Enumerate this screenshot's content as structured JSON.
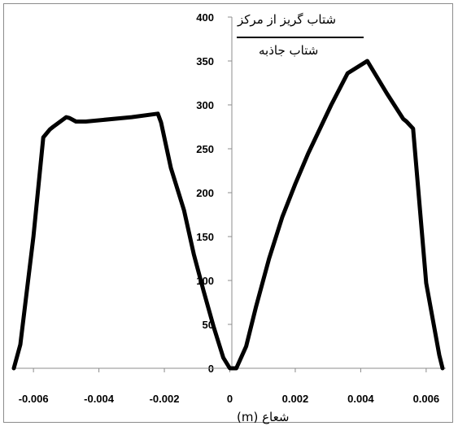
{
  "chart_data": {
    "type": "line",
    "ylabel": {
      "numerator": "شتاب گریز از مرکز",
      "denominator": "شتاب جاذبه"
    },
    "xlabel": "شعاع (m)",
    "xlim": [
      -0.0066,
      0.0066
    ],
    "ylim": [
      0,
      400
    ],
    "x_ticks": [
      "-0.006",
      "-0.004",
      "-0.002",
      "0",
      "0.002",
      "0.004",
      "0.006"
    ],
    "x_tick_values": [
      -0.006,
      -0.004,
      -0.002,
      0,
      0.002,
      0.004,
      0.006
    ],
    "y_ticks": [
      "0",
      "50",
      "100",
      "150",
      "200",
      "250",
      "300",
      "350",
      "400"
    ],
    "y_tick_values": [
      0,
      50,
      100,
      150,
      200,
      250,
      300,
      350,
      400
    ],
    "grid": false,
    "legend": "none",
    "line_color": "#000000",
    "series": [
      {
        "x": [
          -0.0066,
          -0.0064,
          -0.006,
          -0.0057,
          -0.0055,
          -0.0054,
          -0.005,
          -0.0049,
          -0.0047,
          -0.0044,
          -0.003,
          -0.0022,
          -0.0021,
          -0.0018,
          -0.0014,
          -0.0011,
          -0.0008,
          -0.0005,
          -0.0002,
          0,
          0.0002,
          0.0005,
          0.0008,
          0.0012,
          0.0016,
          0.002,
          0.0024,
          0.0031,
          0.0036,
          0.0042,
          0.0048,
          0.0053,
          0.0054,
          0.0056,
          0.006,
          0.0064,
          0.0065
        ],
        "y": [
          0,
          27,
          150,
          263,
          272,
          275,
          286,
          285,
          281,
          281,
          286,
          290,
          280,
          228,
          180,
          130,
          88,
          48,
          12,
          0,
          0,
          25,
          70,
          125,
          172,
          210,
          245,
          300,
          336,
          350,
          313,
          284,
          281,
          273,
          97,
          15,
          0
        ]
      }
    ]
  }
}
